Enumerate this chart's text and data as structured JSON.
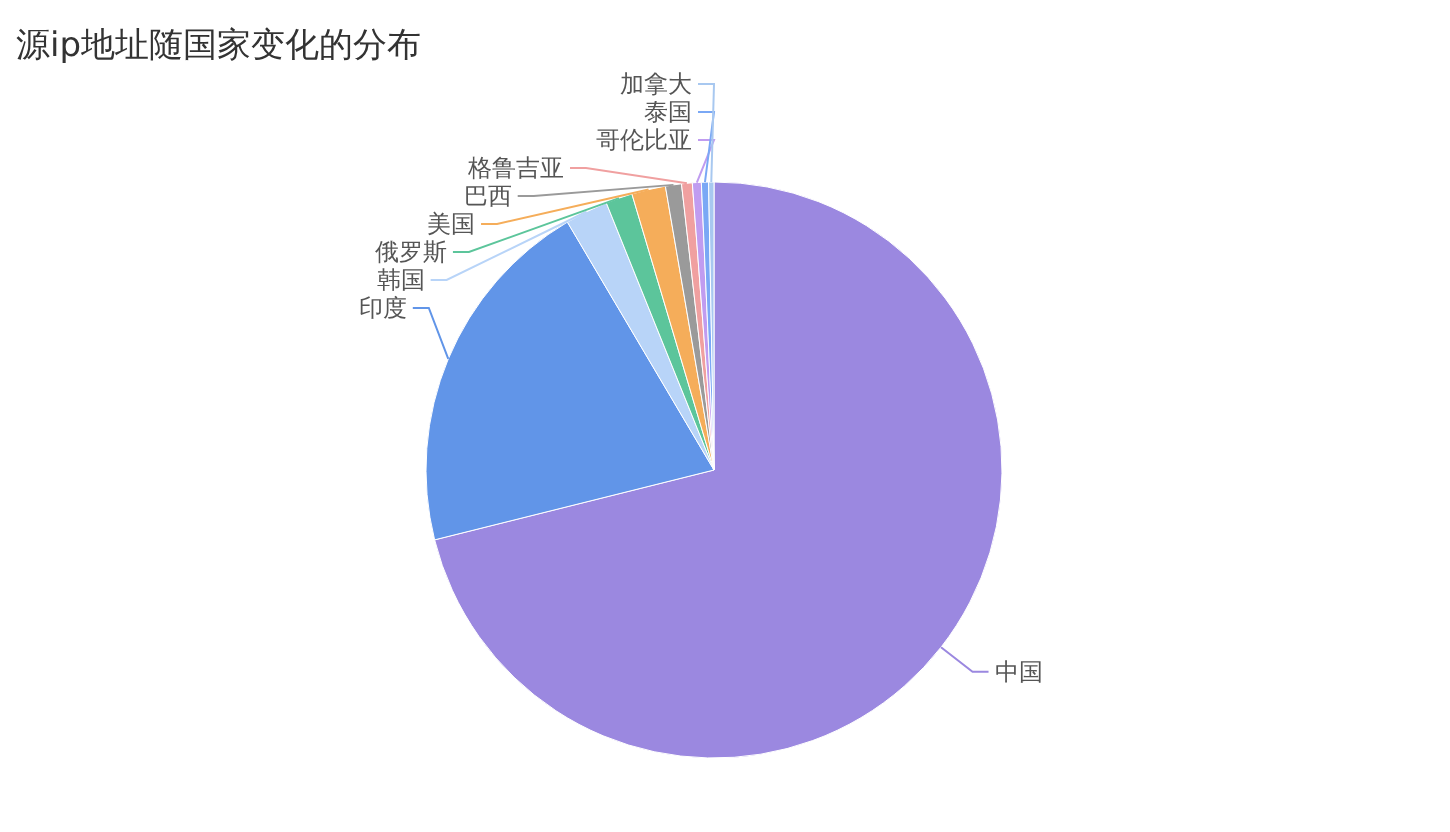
{
  "chart_data": {
    "type": "pie",
    "title": "源ip地址随国家变化的分布",
    "categories": [
      "中国",
      "印度",
      "韩国",
      "俄罗斯",
      "美国",
      "巴西",
      "格鲁吉亚",
      "哥伦比亚",
      "泰国",
      "加拿大"
    ],
    "values": [
      71.1,
      20.4,
      2.4,
      1.5,
      1.9,
      0.9,
      0.6,
      0.5,
      0.4,
      0.3
    ],
    "colors": [
      "#9b88e0",
      "#6195e8",
      "#b8d4f8",
      "#5cc59b",
      "#f5ad5a",
      "#9a9a9a",
      "#f0a0a0",
      "#c09cf0",
      "#7aa8f5",
      "#a8c8f0"
    ]
  }
}
